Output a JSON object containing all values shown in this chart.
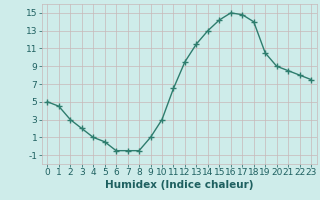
{
  "x": [
    0,
    1,
    2,
    3,
    4,
    5,
    6,
    7,
    8,
    9,
    10,
    11,
    12,
    13,
    14,
    15,
    16,
    17,
    18,
    19,
    20,
    21,
    22,
    23
  ],
  "y": [
    5.0,
    4.5,
    3.0,
    2.0,
    1.0,
    0.5,
    -0.5,
    -0.5,
    -0.5,
    1.0,
    3.0,
    6.5,
    9.5,
    11.5,
    13.0,
    14.2,
    15.0,
    14.8,
    14.0,
    10.5,
    9.0,
    8.5,
    8.0,
    7.5
  ],
  "xlabel": "Humidex (Indice chaleur)",
  "xlim": [
    -0.5,
    23.5
  ],
  "ylim": [
    -2,
    16
  ],
  "yticks": [
    -1,
    1,
    3,
    5,
    7,
    9,
    11,
    13,
    15
  ],
  "xtick_labels": [
    "0",
    "1",
    "2",
    "3",
    "4",
    "5",
    "6",
    "7",
    "8",
    "9",
    "10",
    "11",
    "12",
    "13",
    "14",
    "15",
    "16",
    "17",
    "18",
    "19",
    "20",
    "21",
    "22",
    "23"
  ],
  "line_color": "#2e7d6e",
  "marker": "+",
  "marker_size": 4,
  "marker_lw": 1.0,
  "line_width": 1.0,
  "bg_color": "#ceecea",
  "grid_color": "#c8b8b8",
  "label_color": "#1e6060",
  "xlabel_fontsize": 7.5,
  "tick_fontsize": 6.5
}
